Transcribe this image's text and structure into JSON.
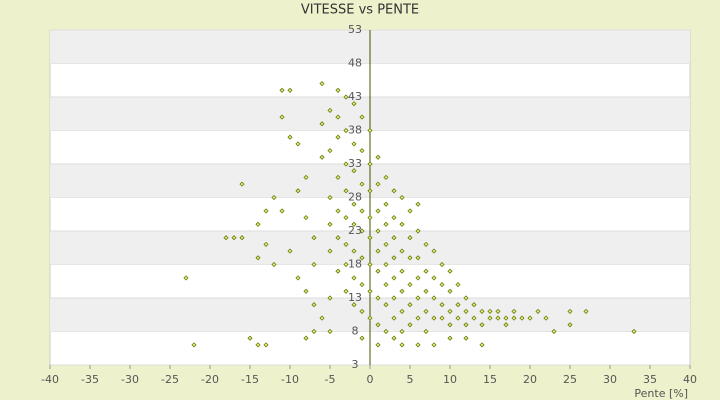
{
  "chart_data": {
    "type": "scatter",
    "title": "VITESSE vs PENTE",
    "x_label": "Pente [%]",
    "color": "#6b7a00",
    "marker_fill": "#e8ec90",
    "xlim": [
      -40,
      40
    ],
    "xticks": [
      -40,
      -35,
      -30,
      -25,
      -20,
      -15,
      -10,
      -5,
      0,
      5,
      10,
      15,
      20,
      25,
      30,
      35,
      40
    ],
    "ylim": [
      3,
      53
    ],
    "yticks": [
      3,
      8,
      13,
      18,
      23,
      28,
      33,
      38,
      43,
      48,
      53
    ],
    "banded_grid": true,
    "x": [
      -22,
      -23,
      -16,
      -18,
      -17,
      -16,
      -14,
      -14,
      -13,
      -13,
      -15,
      -14,
      -13,
      -12,
      -11,
      -10,
      -11,
      -9,
      -10,
      -9,
      -8,
      -8,
      -7,
      -7,
      -6,
      -6,
      -6,
      -5,
      -5,
      -5,
      -5,
      -5,
      -5,
      -4,
      -4,
      -4,
      -4,
      -4,
      -4,
      -4,
      -3,
      -3,
      -3,
      -3,
      -3,
      -3,
      -3,
      -3,
      -2,
      -2,
      -2,
      -2,
      -2,
      -2,
      -2,
      -2,
      -1,
      -1,
      -1,
      -1,
      -1,
      -1,
      -1,
      -1,
      0,
      0,
      0,
      0,
      0,
      0,
      0,
      0,
      1,
      1,
      1,
      1,
      1,
      1,
      1,
      1,
      2,
      2,
      2,
      2,
      2,
      2,
      2,
      2,
      3,
      3,
      3,
      3,
      3,
      3,
      3,
      3,
      4,
      4,
      4,
      4,
      4,
      4,
      4,
      5,
      5,
      5,
      5,
      5,
      5,
      6,
      6,
      6,
      6,
      6,
      6,
      7,
      7,
      7,
      7,
      7,
      8,
      8,
      8,
      8,
      9,
      9,
      9,
      9,
      10,
      10,
      10,
      10,
      11,
      11,
      11,
      12,
      12,
      12,
      13,
      13,
      14,
      14,
      14,
      15,
      15,
      16,
      16,
      17,
      17,
      18,
      18,
      19,
      20,
      21,
      22,
      23,
      25,
      25,
      27,
      33,
      -7,
      -5,
      -8,
      6,
      8,
      10,
      12,
      -1,
      1,
      4,
      -6,
      -7,
      -8,
      -9,
      -10,
      -11,
      -12
    ],
    "values": [
      6,
      16,
      30,
      22,
      22,
      22,
      19,
      24,
      21,
      26,
      7,
      6,
      6,
      28,
      44,
      44,
      40,
      36,
      37,
      29,
      31,
      25,
      22,
      18,
      45,
      39,
      34,
      41,
      35,
      28,
      24,
      20,
      13,
      44,
      40,
      37,
      31,
      26,
      22,
      17,
      43,
      38,
      33,
      29,
      25,
      21,
      18,
      14,
      42,
      36,
      32,
      27,
      24,
      20,
      16,
      12,
      40,
      35,
      30,
      26,
      23,
      19,
      15,
      11,
      38,
      33,
      29,
      25,
      22,
      18,
      14,
      10,
      34,
      30,
      26,
      23,
      20,
      17,
      13,
      9,
      31,
      27,
      24,
      21,
      18,
      15,
      12,
      8,
      29,
      25,
      22,
      19,
      16,
      13,
      10,
      7,
      28,
      24,
      20,
      17,
      14,
      11,
      8,
      26,
      22,
      19,
      15,
      12,
      9,
      27,
      23,
      19,
      16,
      13,
      10,
      21,
      17,
      14,
      11,
      8,
      20,
      16,
      13,
      10,
      18,
      15,
      12,
      10,
      17,
      14,
      11,
      9,
      15,
      12,
      10,
      13,
      11,
      9,
      12,
      10,
      11,
      9,
      6,
      11,
      10,
      11,
      10,
      10,
      9,
      10,
      11,
      10,
      10,
      11,
      10,
      8,
      9,
      11,
      11,
      8,
      8,
      8,
      7,
      6,
      6,
      7,
      7,
      7,
      6,
      6,
      10,
      12,
      14,
      16,
      20,
      26,
      18
    ]
  }
}
